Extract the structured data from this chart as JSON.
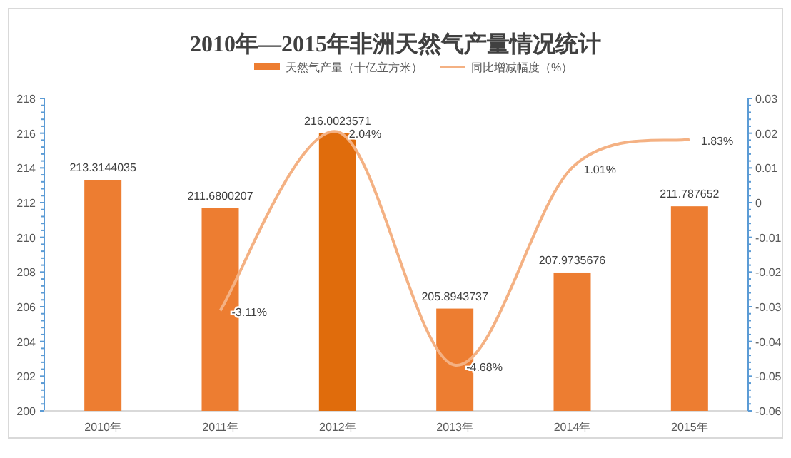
{
  "chart_data": {
    "type": "bar",
    "title": "2010年—2015年非洲天然气产量情况统计",
    "categories": [
      "2010年",
      "2011年",
      "2012年",
      "2013年",
      "2014年",
      "2015年"
    ],
    "series": [
      {
        "name": "天然气产量（十亿立方米）",
        "color": "#ed7d31",
        "colors": [
          "#ed7d31",
          "#ed7d31",
          "#e06c0c",
          "#ed7d31",
          "#ed7d31",
          "#ed7d31"
        ],
        "values": [
          213.3144035,
          211.6800207,
          216.0023571,
          205.8943737,
          207.9735676,
          211.787652
        ]
      },
      {
        "name": "同比增减幅度（%）",
        "type": "line",
        "axis": "y2",
        "color": "#f4b183",
        "values": [
          null,
          -0.0311,
          0.0204,
          -0.0468,
          0.0101,
          0.0183
        ],
        "value_labels": [
          null,
          "-3.11%",
          "2.04%",
          "-4.68%",
          "1.01%",
          "1.83%"
        ]
      }
    ],
    "data_labels": true,
    "ylim": [
      200,
      218
    ],
    "yticks": [
      200,
      202,
      204,
      206,
      208,
      210,
      212,
      214,
      216,
      218
    ],
    "y2lim": [
      -0.06,
      0.03
    ],
    "y2ticks": [
      -0.06,
      -0.05,
      -0.04,
      -0.03,
      -0.02,
      -0.01,
      0,
      0.01,
      0.02,
      0.03
    ],
    "grid": false,
    "legend": "top",
    "marker": "none",
    "line_style": "solid"
  }
}
